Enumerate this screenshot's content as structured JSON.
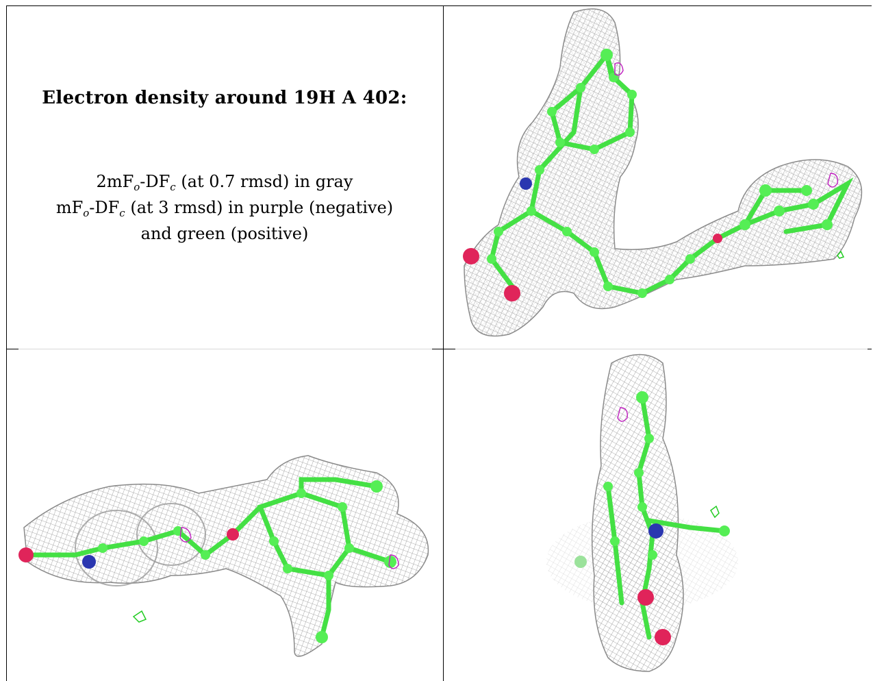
{
  "caption": {
    "title": "Electron density around 19H A 402:",
    "line1": {
      "prefix": "2mF",
      "sub1": "o",
      "mid": "-DF",
      "sub2": "c",
      "suffix": " (at 0.7 rmsd) in gray"
    },
    "line2": {
      "prefix": "mF",
      "sub1": "o",
      "mid": "-DF",
      "sub2": "c",
      "suffix": " (at 3 rmsd) in purple (negative)"
    },
    "line3": "and green (positive)"
  },
  "colors": {
    "mesh": "#9a9a9a",
    "carbon": "#4ee84e",
    "nitrogen": "#2a36b0",
    "oxygen": "#e0245a",
    "negative_density": "#c020c0",
    "positive_density": "#22cc22"
  },
  "panels": [
    "view-top-right",
    "view-bottom-left",
    "view-bottom-right"
  ]
}
